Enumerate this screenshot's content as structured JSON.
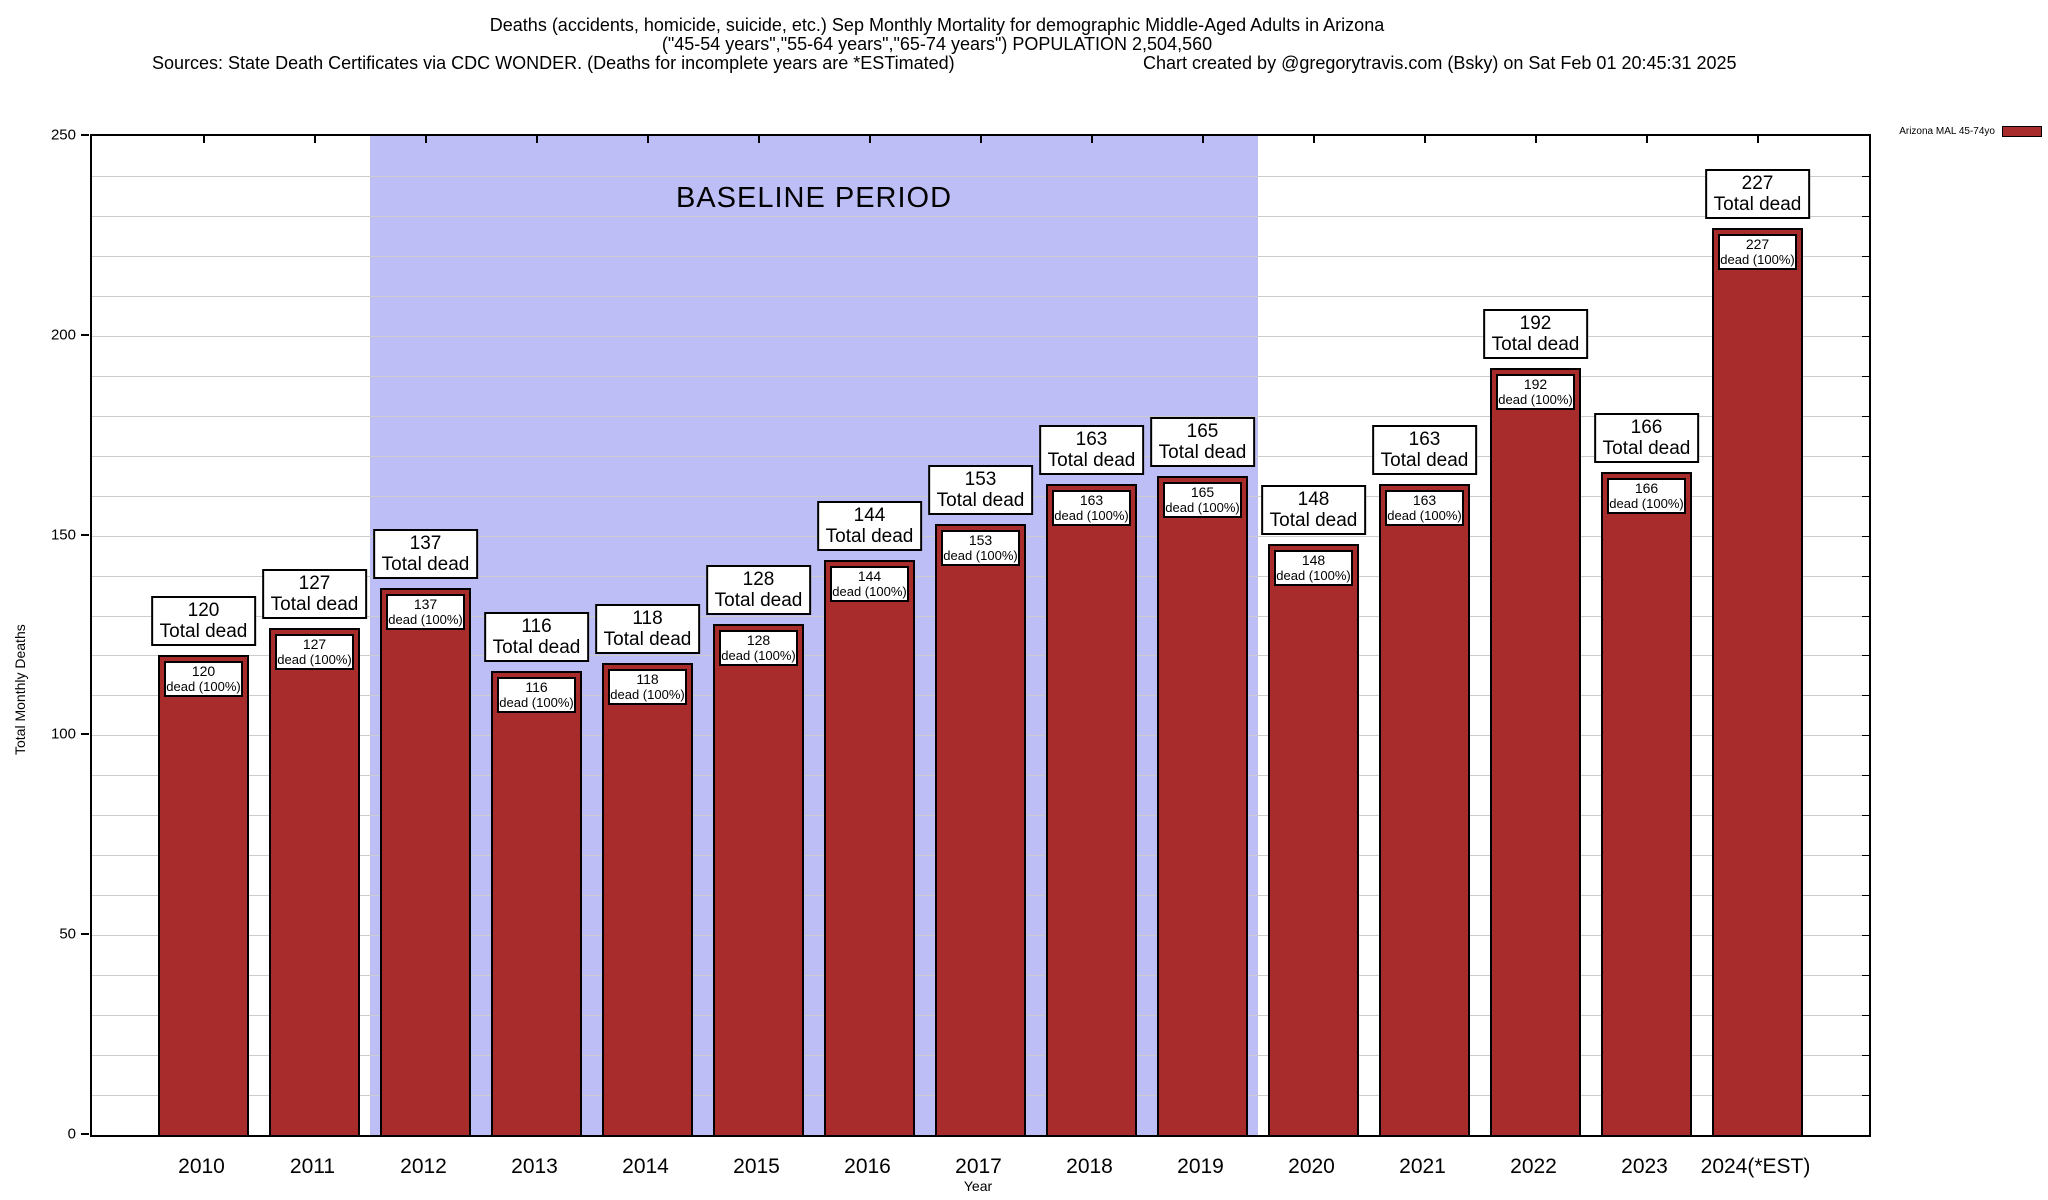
{
  "header": {
    "title_line1": "Deaths (accidents, homicide, suicide, etc.) Sep Monthly Mortality for demographic Middle-Aged Adults in Arizona",
    "title_line2": "(\"45-54 years\",\"55-64 years\",\"65-74 years\") POPULATION 2,504,560",
    "sources": "Sources: State Death Certificates via CDC WONDER. (Deaths for incomplete years are *ESTimated)",
    "credit": "Chart created by @gregorytravis.com (Bsky) on Sat Feb 01 20:45:31 2025"
  },
  "legend": {
    "label": "Arizona MAL 45-74yo",
    "swatch_color": "#a82c2c"
  },
  "chart_data": {
    "type": "bar",
    "title": "Deaths (accidents, homicide, suicide, etc.) Sep Monthly Mortality for demographic Middle-Aged Adults in Arizona",
    "subtitle": "(\"45-54 years\",\"55-64 years\",\"65-74 years\") POPULATION 2,504,560",
    "categories": [
      "2010",
      "2011",
      "2012",
      "2013",
      "2014",
      "2015",
      "2016",
      "2017",
      "2018",
      "2019",
      "2020",
      "2021",
      "2022",
      "2023",
      "2024(*EST)"
    ],
    "values": [
      120,
      127,
      137,
      116,
      118,
      128,
      144,
      153,
      163,
      165,
      148,
      163,
      192,
      166,
      227
    ],
    "series_name": "Arizona MAL 45-74yo",
    "xlabel": "Year",
    "ylabel": "Total Monthly Deaths",
    "ylim": [
      0,
      250
    ],
    "ytick_step": 50,
    "yticks": [
      0,
      50,
      100,
      150,
      200,
      250
    ],
    "grid_step": 10,
    "grid": true,
    "legend_position": "top-right",
    "bar_top_label_suffix": "Total dead",
    "bar_inner_label_suffix": "dead (100%)",
    "baseline_band": {
      "label": "BASELINE PERIOD",
      "from_category": "2012",
      "to_category": "2019",
      "color": "#bebef6"
    },
    "colors": {
      "bar": "#a82c2c",
      "bar_edge": "#000000",
      "grid": "#cccccc",
      "band": "#bebef6",
      "text": "#000000"
    }
  }
}
